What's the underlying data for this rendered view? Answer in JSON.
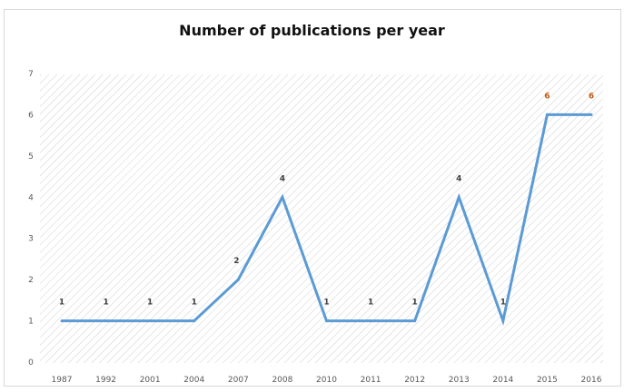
{
  "chart_data": {
    "type": "line",
    "title": "Number of publications per year",
    "xlabel": "",
    "ylabel": "",
    "categories": [
      "1987",
      "1992",
      "2001",
      "2004",
      "2007",
      "2008",
      "2010",
      "2011",
      "2012",
      "2013",
      "2014",
      "2015",
      "2016"
    ],
    "series": [
      {
        "values": [
          1,
          1,
          1,
          1,
          2,
          4,
          1,
          1,
          1,
          4,
          1,
          6,
          6
        ]
      }
    ],
    "ylim": [
      0,
      7
    ],
    "yticks": [
      0,
      1,
      2,
      3,
      4,
      5,
      6,
      7
    ],
    "data_labels": true,
    "grid": false,
    "legend": "none",
    "colors": {
      "line": "#5b9bd5",
      "label_default": "#404040",
      "label_high": "#c55a11",
      "plot_hatch": "#d0d0d0"
    }
  }
}
